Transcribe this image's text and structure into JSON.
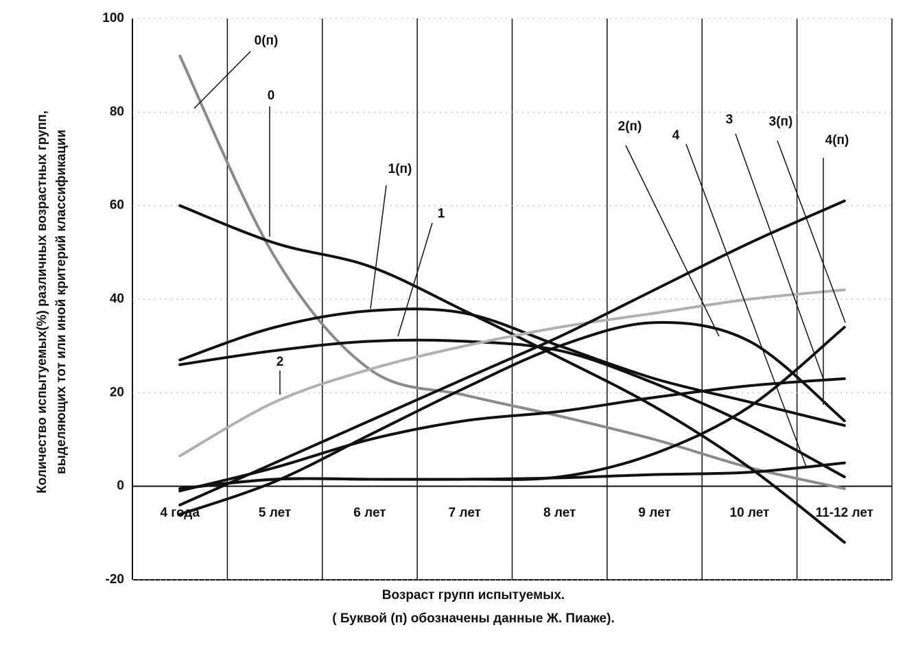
{
  "chart_data": {
    "type": "line",
    "ylabel": [
      "Количество испытуемых(%)  различных  возрастных групп,",
      "выделяющих тот или иной критерий классификации"
    ],
    "xlabel": [
      "Возраст  групп  испытуемых.",
      "( Буквой (п) обозначены данные Ж. Пиаже)."
    ],
    "categories": [
      "4 года",
      "5 лет",
      "6 лет",
      "7 лет",
      "8 лет",
      "9 лет",
      "10 лет",
      "11-12 лет"
    ],
    "ylim": [
      -20,
      100
    ],
    "yticks": [
      -20,
      0,
      20,
      40,
      60,
      80,
      100
    ],
    "series": [
      {
        "name": "0(п)",
        "color": "#8a8a8a",
        "values": [
          92,
          49,
          25,
          19.5,
          15,
          10,
          4,
          -0.5
        ]
      },
      {
        "name": "0",
        "color": "#111111",
        "values": [
          60,
          52,
          47,
          37.5,
          27.5,
          17,
          4,
          -12
        ]
      },
      {
        "name": "1(п)",
        "color": "#111111",
        "values": [
          27,
          34,
          37.5,
          37,
          30,
          23,
          18,
          13
        ]
      },
      {
        "name": "1",
        "color": "#111111",
        "values": [
          26,
          29,
          31,
          31,
          29,
          22,
          13,
          2
        ]
      },
      {
        "name": "2",
        "color": "#b0b0b0",
        "values": [
          6.5,
          18,
          25,
          30,
          34,
          37,
          40,
          42
        ]
      },
      {
        "name": "2(п)",
        "color": "#111111",
        "values": [
          -6,
          1,
          11,
          21,
          30,
          35,
          31,
          14
        ]
      },
      {
        "name": "3",
        "color": "#111111",
        "values": [
          -1,
          4,
          10,
          14,
          16,
          19,
          21.5,
          23
        ]
      },
      {
        "name": "3(п)",
        "color": "#111111",
        "values": [
          -0.5,
          1.5,
          1.5,
          1.5,
          2,
          7,
          17,
          34
        ]
      },
      {
        "name": "4",
        "color": "#111111",
        "values": [
          -0.5,
          1.5,
          1.5,
          1.5,
          1.8,
          2.5,
          3,
          5
        ]
      },
      {
        "name": "4(п)",
        "color": "#111111",
        "values": [
          -4,
          5,
          14,
          23,
          32,
          42,
          52,
          61
        ]
      }
    ]
  }
}
